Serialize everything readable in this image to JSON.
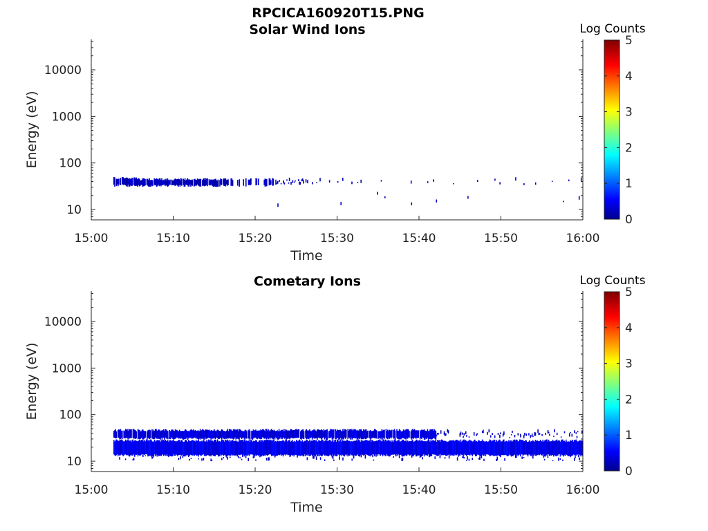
{
  "figure_title": "RPCICA160920T15.PNG",
  "chart_data": [
    {
      "type": "heatmap",
      "title": "Solar Wind Ions",
      "xlabel": "Time",
      "ylabel": "Energy (eV)",
      "x_ticks": [
        "15:00",
        "15:10",
        "15:20",
        "15:30",
        "15:40",
        "15:50",
        "16:00"
      ],
      "xlim_minutes": [
        0,
        60
      ],
      "y_scale": "log",
      "ylim": [
        6,
        45000
      ],
      "y_ticks": [
        10,
        100,
        1000,
        10000
      ],
      "y_tick_labels": [
        "10",
        "100",
        "1000",
        "10000"
      ],
      "colorbar": {
        "label": "Log Counts",
        "ticks": [
          "0",
          "1",
          "2",
          "3",
          "4",
          "5"
        ],
        "range": [
          0,
          5
        ],
        "colormap": "jet"
      },
      "bands": [
        {
          "t_start": 2.7,
          "t_end": 5.5,
          "e_low": 33,
          "e_high": 48,
          "log_counts": 0.3,
          "density": 0.8
        },
        {
          "t_start": 5.5,
          "t_end": 16.7,
          "e_low": 33,
          "e_high": 45,
          "log_counts": 0.3,
          "density": 0.9
        },
        {
          "t_start": 17.0,
          "t_end": 22.5,
          "e_low": 33,
          "e_high": 45,
          "log_counts": 0.4,
          "density": 0.6
        },
        {
          "t_start": 22.5,
          "t_end": 28.0,
          "e_low": 33,
          "e_high": 42,
          "log_counts": 0.3,
          "density": 0.35
        },
        {
          "t_start": 28.0,
          "t_end": 33.0,
          "e_low": 33,
          "e_high": 42,
          "log_counts": 0.3,
          "density": 0.15
        },
        {
          "t_start": 33.0,
          "t_end": 60.0,
          "e_low": 33,
          "e_high": 42,
          "log_counts": 0.3,
          "density": 0.04
        },
        {
          "t_start": 5.0,
          "t_end": 60.0,
          "e_low": 11,
          "e_high": 26,
          "log_counts": 0.3,
          "density": 0.012
        }
      ]
    },
    {
      "type": "heatmap",
      "title": "Cometary Ions",
      "xlabel": "Time",
      "ylabel": "Energy (eV)",
      "x_ticks": [
        "15:00",
        "15:10",
        "15:20",
        "15:30",
        "15:40",
        "15:50",
        "16:00"
      ],
      "xlim_minutes": [
        0,
        60
      ],
      "y_scale": "log",
      "ylim": [
        6,
        45000
      ],
      "y_ticks": [
        10,
        100,
        1000,
        10000
      ],
      "y_tick_labels": [
        "10",
        "100",
        "1000",
        "10000"
      ],
      "colorbar": {
        "label": "Log Counts",
        "ticks": [
          "0",
          "1",
          "2",
          "3",
          "4",
          "5"
        ],
        "range": [
          0,
          5
        ],
        "colormap": "jet"
      },
      "bands": [
        {
          "t_start": 2.7,
          "t_end": 42.0,
          "e_low": 31,
          "e_high": 47,
          "log_counts": 0.45,
          "density": 0.95
        },
        {
          "t_start": 42.0,
          "t_end": 60.0,
          "e_low": 31,
          "e_high": 42,
          "log_counts": 0.35,
          "density": 0.45
        },
        {
          "t_start": 2.7,
          "t_end": 60.5,
          "e_low": 13.5,
          "e_high": 28,
          "log_counts": 0.55,
          "density": 1.0
        },
        {
          "t_start": 2.7,
          "t_end": 60.0,
          "e_low": 10,
          "e_high": 14,
          "log_counts": 0.4,
          "density": 0.25
        }
      ]
    }
  ]
}
